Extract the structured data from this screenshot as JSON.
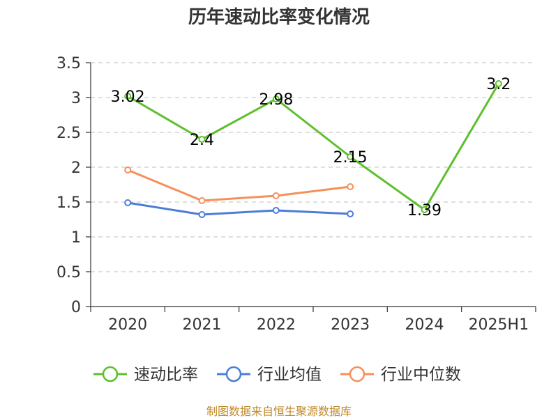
{
  "chart_data": {
    "type": "line",
    "title": "历年速动比率变化情况",
    "categories": [
      "2020",
      "2021",
      "2022",
      "2023",
      "2024",
      "2025H1"
    ],
    "ylim": [
      0,
      3.5
    ],
    "yticks": [
      "0",
      "0.5",
      "1",
      "1.5",
      "2",
      "2.5",
      "3",
      "3.5"
    ],
    "grid": true,
    "legend_position": "bottom",
    "series": [
      {
        "name": "速动比率",
        "color": "#5cc02b",
        "values": [
          3.02,
          2.4,
          2.98,
          2.15,
          1.39,
          3.2
        ],
        "labels": [
          "3.02",
          "2.4",
          "2.98",
          "2.15",
          "1.39",
          "3.2"
        ]
      },
      {
        "name": "行业均值",
        "color": "#4a7ed8",
        "values": [
          1.49,
          1.32,
          1.38,
          1.33,
          null,
          null
        ]
      },
      {
        "name": "行业中位数",
        "color": "#f5905a",
        "values": [
          1.96,
          1.52,
          1.59,
          1.72,
          null,
          null
        ]
      }
    ]
  },
  "source": "制图数据来自恒生聚源数据库"
}
